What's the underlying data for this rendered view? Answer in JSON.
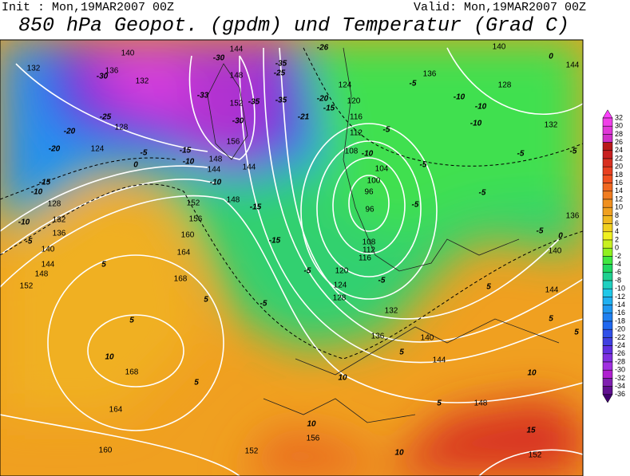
{
  "header": {
    "init": "Init : Mon,19MAR2007 00Z",
    "valid": "Valid: Mon,19MAR2007 00Z",
    "title": "850 hPa Geopot. (gpdm) und Temperatur (Grad C)"
  },
  "colorbar": {
    "levels": [
      32,
      30,
      28,
      26,
      24,
      22,
      20,
      18,
      16,
      14,
      12,
      10,
      8,
      6,
      4,
      2,
      0,
      -2,
      -4,
      -6,
      -8,
      -10,
      -12,
      -14,
      -16,
      -18,
      -20,
      -22,
      -24,
      -26,
      -28,
      -30,
      -32,
      -34,
      -36
    ],
    "colors": [
      "#ff40ff",
      "#f040e8",
      "#e038d8",
      "#d030c8",
      "#b81818",
      "#c82020",
      "#d83020",
      "#e84020",
      "#f05020",
      "#f06820",
      "#f07c20",
      "#f09020",
      "#f0a020",
      "#f0b820",
      "#f0d020",
      "#f0f020",
      "#c8f020",
      "#90f020",
      "#40e840",
      "#20d860",
      "#20d090",
      "#20d0c0",
      "#20c8e8",
      "#20b0f0",
      "#2098f0",
      "#2080f0",
      "#2068f0",
      "#3050e8",
      "#4040e0",
      "#6030e0",
      "#8030e0",
      "#a030e0",
      "#b020d0",
      "#8020b0",
      "#601090",
      "#400070"
    ]
  },
  "geopotential_labels": [
    140,
    144,
    132,
    136,
    132,
    148,
    152,
    128,
    124,
    156,
    148,
    144,
    144,
    140,
    136,
    128,
    124,
    120,
    116,
    112,
    108,
    104,
    100,
    96,
    96,
    108,
    112,
    116,
    120,
    124,
    128,
    132,
    136,
    140,
    144,
    148,
    152,
    156,
    160,
    164,
    168,
    168,
    164,
    160,
    156,
    152,
    148,
    144,
    148,
    152,
    140,
    136,
    132,
    128,
    152,
    132,
    136,
    140,
    144,
    144
  ],
  "temperature_labels": [
    -26,
    -30,
    -35,
    -30,
    -25,
    -33,
    -35,
    -35,
    -30,
    -20,
    -15,
    -21,
    -25,
    -20,
    -20,
    -5,
    -10,
    -10,
    -10,
    -5,
    -10,
    -5,
    -5,
    -15,
    -10,
    -15,
    -10,
    -10,
    -15,
    -10,
    -5,
    -15,
    -5,
    -5,
    -5,
    -5,
    -5,
    -5,
    -5,
    -5,
    0,
    0,
    5,
    5,
    5,
    10,
    5,
    10,
    10,
    5,
    10,
    15,
    10,
    5,
    5,
    5,
    5,
    0
  ]
}
